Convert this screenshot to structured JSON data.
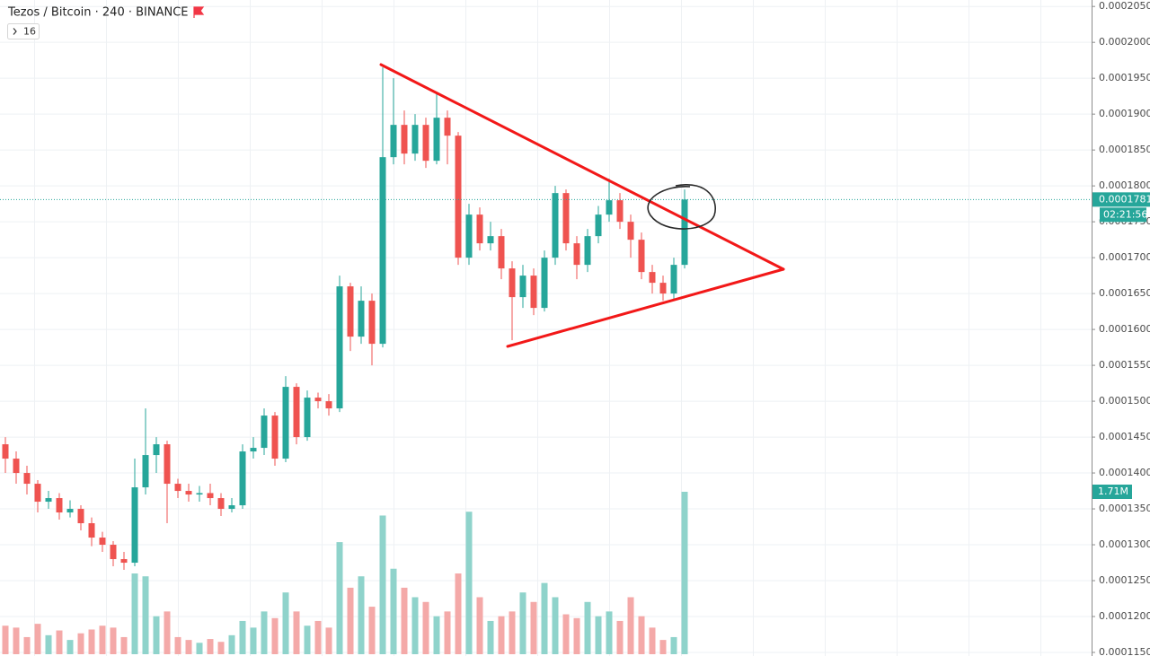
{
  "chart_data": {
    "type": "candlestick",
    "title": "Tezos / Bitcoin · 240 · BINANCE",
    "indicators_count": "16",
    "up_color": "#26a69a",
    "down_color": "#ef5350",
    "volume_up_color": "#8fd3cb",
    "volume_down_color": "#f4a9a8",
    "grid": true,
    "ylim": [
      0.0001145,
      0.0002059
    ],
    "yticks": [
      {
        "value": 0.000205,
        "label": "0.0002050"
      },
      {
        "value": 0.0002,
        "label": "0.0002000"
      },
      {
        "value": 0.000195,
        "label": "0.0001950"
      },
      {
        "value": 0.00019,
        "label": "0.0001900"
      },
      {
        "value": 0.000185,
        "label": "0.0001850"
      },
      {
        "value": 0.00018,
        "label": "0.0001800"
      },
      {
        "value": 0.000175,
        "label": "0.0001750"
      },
      {
        "value": 0.00017,
        "label": "0.0001700"
      },
      {
        "value": 0.000165,
        "label": "0.0001650"
      },
      {
        "value": 0.00016,
        "label": "0.0001600"
      },
      {
        "value": 0.000155,
        "label": "0.0001550"
      },
      {
        "value": 0.00015,
        "label": "0.0001500"
      },
      {
        "value": 0.000145,
        "label": "0.0001450"
      },
      {
        "value": 0.00014,
        "label": "0.0001400"
      },
      {
        "value": 0.000135,
        "label": "0.0001350"
      },
      {
        "value": 0.00013,
        "label": "0.0001300"
      },
      {
        "value": 0.000125,
        "label": "0.0001250"
      },
      {
        "value": 0.00012,
        "label": "0.0001200"
      },
      {
        "value": 0.000115,
        "label": "0.0001150"
      }
    ],
    "open": [
      0.000144,
      0.000142,
      0.00014,
      0.0001385,
      0.000136,
      0.0001365,
      0.0001345,
      0.000135,
      0.000133,
      0.000131,
      0.00013,
      0.000128,
      0.0001275,
      0.000138,
      0.0001425,
      0.000144,
      0.0001385,
      0.0001375,
      0.000137,
      0.0001372,
      0.0001365,
      0.000135,
      0.0001355,
      0.000143,
      0.0001435,
      0.000148,
      0.000142,
      0.000152,
      0.000145,
      0.0001505,
      0.00015,
      0.000149,
      0.000166,
      0.000159,
      0.000164,
      0.000158,
      0.000184,
      0.0001885,
      0.0001845,
      0.0001885,
      0.0001835,
      0.0001895,
      0.000187,
      0.00017,
      0.000176,
      0.000172,
      0.000173,
      0.0001685,
      0.0001645,
      0.0001675,
      0.000163,
      0.00017,
      0.000179,
      0.000172,
      0.000169,
      0.000173,
      0.000176,
      0.000178,
      0.000175,
      0.0001725,
      0.000168,
      0.0001665,
      0.000165,
      0.000169
    ],
    "high": [
      0.000145,
      0.000143,
      0.000141,
      0.000139,
      0.0001375,
      0.0001372,
      0.0001362,
      0.0001355,
      0.0001338,
      0.0001318,
      0.0001305,
      0.000129,
      0.000142,
      0.000149,
      0.000145,
      0.0001445,
      0.0001392,
      0.0001385,
      0.0001382,
      0.0001385,
      0.0001372,
      0.0001365,
      0.000144,
      0.000145,
      0.000149,
      0.0001485,
      0.0001535,
      0.0001525,
      0.0001515,
      0.0001512,
      0.000151,
      0.0001675,
      0.0001665,
      0.000166,
      0.000165,
      0.0001965,
      0.000195,
      0.0001905,
      0.00019,
      0.0001895,
      0.000193,
      0.0001905,
      0.0001875,
      0.0001775,
      0.000177,
      0.000175,
      0.000174,
      0.0001695,
      0.000169,
      0.0001685,
      0.000171,
      0.00018,
      0.0001795,
      0.000173,
      0.000174,
      0.0001772,
      0.000181,
      0.000179,
      0.000176,
      0.0001735,
      0.000169,
      0.0001675,
      0.00017,
      0.0001795
    ],
    "low": [
      0.00014,
      0.0001385,
      0.000137,
      0.0001345,
      0.000135,
      0.0001335,
      0.0001338,
      0.000132,
      0.0001298,
      0.000129,
      0.000127,
      0.0001265,
      0.000127,
      0.000137,
      0.00014,
      0.000133,
      0.0001365,
      0.000136,
      0.000136,
      0.0001355,
      0.000134,
      0.0001345,
      0.000135,
      0.000142,
      0.0001425,
      0.000141,
      0.0001415,
      0.000144,
      0.0001445,
      0.000149,
      0.000148,
      0.0001485,
      0.000157,
      0.000158,
      0.000155,
      0.0001575,
      0.000183,
      0.000183,
      0.0001835,
      0.0001825,
      0.000183,
      0.000183,
      0.000169,
      0.000169,
      0.000171,
      0.000171,
      0.000167,
      0.0001585,
      0.000163,
      0.000162,
      0.0001625,
      0.000169,
      0.000171,
      0.000167,
      0.000168,
      0.000172,
      0.000175,
      0.000174,
      0.00017,
      0.000167,
      0.000165,
      0.000164,
      0.000164,
      0.0001685
    ],
    "close": [
      0.000142,
      0.00014,
      0.0001385,
      0.000136,
      0.0001365,
      0.0001345,
      0.000135,
      0.000133,
      0.000131,
      0.00013,
      0.000128,
      0.0001275,
      0.000138,
      0.0001425,
      0.000144,
      0.0001385,
      0.0001375,
      0.000137,
      0.0001372,
      0.0001365,
      0.000135,
      0.0001355,
      0.000143,
      0.0001435,
      0.000148,
      0.000142,
      0.000152,
      0.000145,
      0.0001505,
      0.00015,
      0.000149,
      0.000166,
      0.000159,
      0.000164,
      0.000158,
      0.000184,
      0.0001885,
      0.0001845,
      0.0001885,
      0.0001835,
      0.0001895,
      0.000187,
      0.00017,
      0.000176,
      0.000172,
      0.000173,
      0.0001685,
      0.0001645,
      0.0001675,
      0.000163,
      0.00017,
      0.000179,
      0.000172,
      0.000169,
      0.000173,
      0.000176,
      0.000178,
      0.000175,
      0.0001725,
      0.000168,
      0.0001665,
      0.000165,
      0.000169,
      0.0001781
    ],
    "volume": {
      "values": [
        300000,
        280000,
        180000,
        320000,
        200000,
        250000,
        150000,
        220000,
        260000,
        300000,
        280000,
        180000,
        850000,
        820000,
        400000,
        450000,
        180000,
        150000,
        120000,
        160000,
        130000,
        200000,
        350000,
        280000,
        450000,
        380000,
        650000,
        450000,
        300000,
        350000,
        280000,
        1180000,
        700000,
        820000,
        500000,
        1460000,
        900000,
        700000,
        600000,
        550000,
        400000,
        450000,
        850000,
        1500000,
        600000,
        350000,
        400000,
        450000,
        650000,
        550000,
        750000,
        600000,
        420000,
        380000,
        550000,
        400000,
        450000,
        350000,
        600000,
        400000,
        280000,
        150000,
        180000,
        1710000
      ],
      "last_label": "1.71M"
    },
    "last_price": 0.0001781,
    "countdown": "02:21:56"
  }
}
